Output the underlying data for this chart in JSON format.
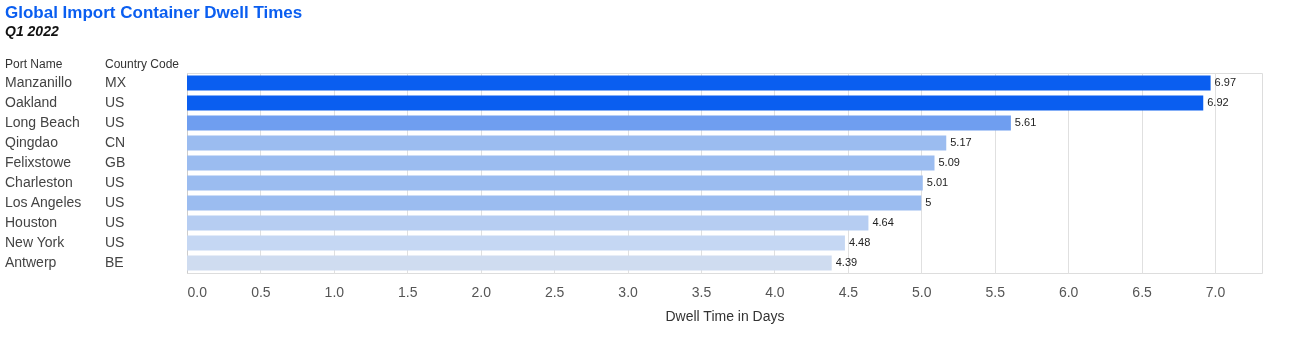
{
  "chart_data": {
    "type": "bar",
    "orientation": "horizontal",
    "title": "Global Import Container Dwell Times",
    "subtitle": "Q1 2022",
    "ylabel": "Port Name",
    "y2label": "Country Code",
    "xlabel": "Dwell Time in Days",
    "categories": [
      "Manzanillo",
      "Oakland",
      "Long Beach",
      "Qingdao",
      "Felixstowe",
      "Charleston",
      "Los Angeles",
      "Houston",
      "New York",
      "Antwerp"
    ],
    "y2_categories": [
      "MX",
      "US",
      "US",
      "CN",
      "GB",
      "US",
      "US",
      "US",
      "US",
      "BE"
    ],
    "values": [
      6.97,
      6.92,
      5.61,
      5.17,
      5.09,
      5.01,
      5,
      4.64,
      4.48,
      4.39
    ],
    "colors": [
      "#0a5ef0",
      "#0a5ef0",
      "#6f9ef0",
      "#9bbcf0",
      "#9bbcf0",
      "#9bbcf0",
      "#9bbcf0",
      "#b6cdf2",
      "#c5d7f3",
      "#cfdcf0"
    ],
    "xlim": [
      0,
      7.32
    ],
    "xticks": [
      {
        "value": 0,
        "label": "0.0"
      },
      0.5,
      {
        "value": 1,
        "label": "1.0"
      },
      1.5,
      {
        "value": 2,
        "label": "2.0"
      },
      2.5,
      {
        "value": 3,
        "label": "3.0"
      },
      3.5,
      {
        "value": 4,
        "label": "4.0"
      },
      4.5,
      {
        "value": 5,
        "label": "5.0"
      },
      5.5,
      {
        "value": 6,
        "label": "6.0"
      },
      6.5,
      {
        "value": 7,
        "label": "7.0"
      }
    ],
    "grid": "x",
    "data_labels": true
  }
}
